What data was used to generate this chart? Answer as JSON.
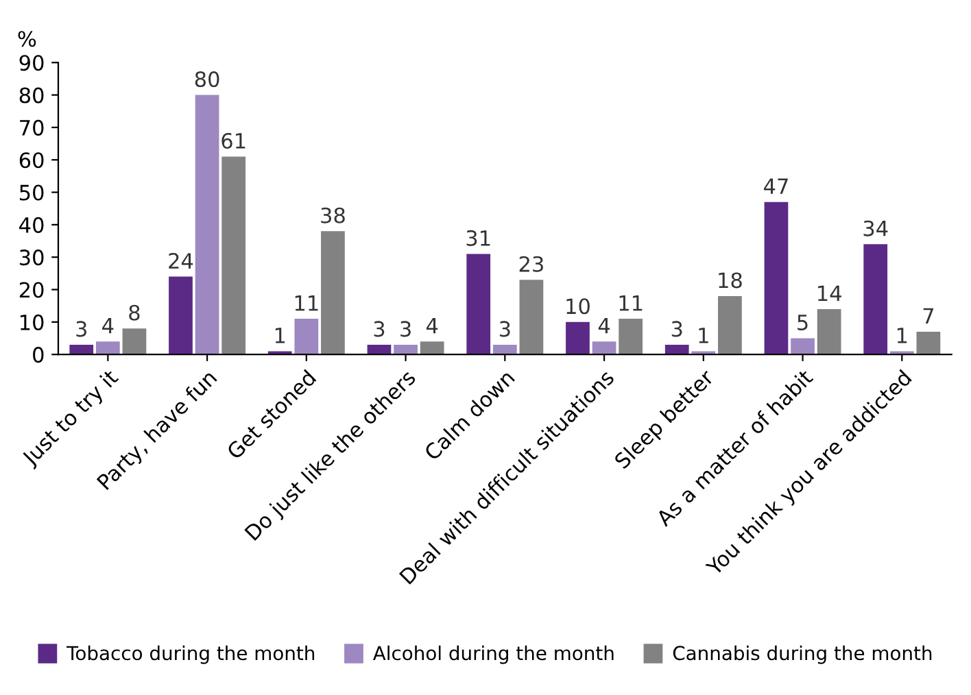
{
  "chart_data": {
    "type": "bar",
    "ylabel": "%",
    "categories": [
      "Just to try it",
      "Party, have fun",
      "Get stoned",
      "Do just like the others",
      "Calm down",
      "Deal with difficult situations",
      "Sleep better",
      "As a matter of habit",
      "You think you are addicted"
    ],
    "series": [
      {
        "name": "Tobacco during the month",
        "color": "#5b2a86",
        "values": [
          3,
          24,
          1,
          3,
          31,
          10,
          3,
          47,
          34
        ]
      },
      {
        "name": "Alcohol during the month",
        "color": "#9d88c2",
        "values": [
          4,
          80,
          11,
          3,
          3,
          4,
          1,
          5,
          1
        ]
      },
      {
        "name": "Cannabis during the month",
        "color": "#828282",
        "values": [
          8,
          61,
          38,
          4,
          23,
          11,
          18,
          14,
          7
        ]
      }
    ],
    "ylim": [
      0,
      90
    ],
    "yticks": [
      0,
      10,
      20,
      30,
      40,
      50,
      60,
      70,
      80,
      90
    ],
    "data_labels": true,
    "grid": false,
    "legend": "bottom"
  }
}
